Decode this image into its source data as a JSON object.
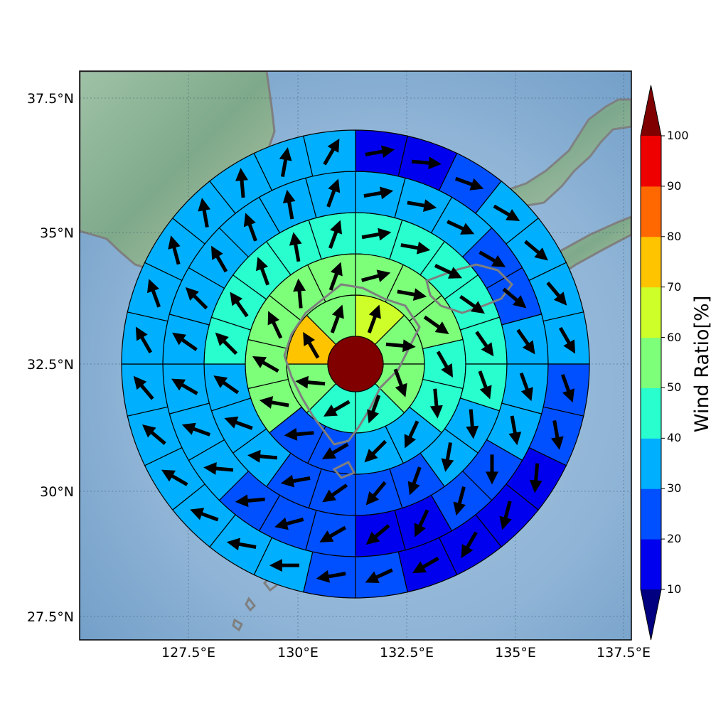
{
  "map": {
    "lat_ticks": [
      "37.5°N",
      "35°N",
      "32.5°N",
      "30°N",
      "27.5°N"
    ],
    "lon_ticks": [
      "127.5°E",
      "130°E",
      "132.5°E",
      "135°E",
      "137.5°E"
    ],
    "center_color": "#800000",
    "coastline_color": "#7f7f7f",
    "rings": [
      {
        "values": [
          65,
          55,
          55,
          45,
          40,
          55,
          75,
          55
        ],
        "directions": [
          20,
          95,
          160,
          200,
          240,
          275,
          330,
          20
        ]
      },
      {
        "values": [
          55,
          55,
          55,
          45,
          45,
          35,
          35,
          25,
          25,
          55,
          55,
          55,
          50,
          50
        ],
        "directions": [
          75,
          100,
          125,
          150,
          175,
          205,
          225,
          240,
          265,
          280,
          300,
          335,
          355,
          20
        ]
      },
      {
        "values": [
          45,
          45,
          45,
          40,
          40,
          40,
          35,
          35,
          25,
          25,
          25,
          25,
          35,
          35,
          35,
          40,
          40,
          40,
          45,
          45
        ],
        "directions": [
          80,
          100,
          115,
          125,
          145,
          160,
          175,
          190,
          200,
          220,
          235,
          260,
          275,
          290,
          305,
          315,
          325,
          340,
          350,
          20
        ]
      },
      {
        "values": [
          35,
          35,
          35,
          25,
          25,
          35,
          35,
          30,
          25,
          25,
          15,
          15,
          25,
          25,
          25,
          35,
          35,
          35,
          35,
          35,
          35,
          35,
          35,
          35
        ],
        "directions": [
          80,
          100,
          115,
          120,
          130,
          145,
          160,
          170,
          180,
          195,
          205,
          230,
          240,
          255,
          265,
          275,
          290,
          300,
          305,
          315,
          330,
          340,
          350,
          20
        ]
      },
      {
        "values": [
          15,
          15,
          20,
          30,
          30,
          30,
          30,
          25,
          20,
          15,
          15,
          15,
          15,
          20,
          20,
          30,
          30,
          30,
          30,
          30,
          30,
          30,
          30,
          30,
          30,
          30,
          30,
          30
        ],
        "directions": [
          80,
          95,
          110,
          120,
          130,
          140,
          150,
          160,
          170,
          185,
          195,
          210,
          240,
          245,
          260,
          270,
          280,
          290,
          300,
          310,
          320,
          330,
          340,
          345,
          350,
          355,
          10,
          30
        ]
      }
    ]
  },
  "colorbar": {
    "title": "Wind Ratio[%]",
    "tick_labels": [
      "10",
      "20",
      "30",
      "40",
      "50",
      "60",
      "70",
      "80",
      "90",
      "100"
    ],
    "colors": [
      "#000080",
      "#0000ee",
      "#0050ff",
      "#00b0ff",
      "#29ffce",
      "#7dff7a",
      "#ceff29",
      "#ffc400",
      "#ff6800",
      "#ee0000",
      "#800000"
    ]
  }
}
